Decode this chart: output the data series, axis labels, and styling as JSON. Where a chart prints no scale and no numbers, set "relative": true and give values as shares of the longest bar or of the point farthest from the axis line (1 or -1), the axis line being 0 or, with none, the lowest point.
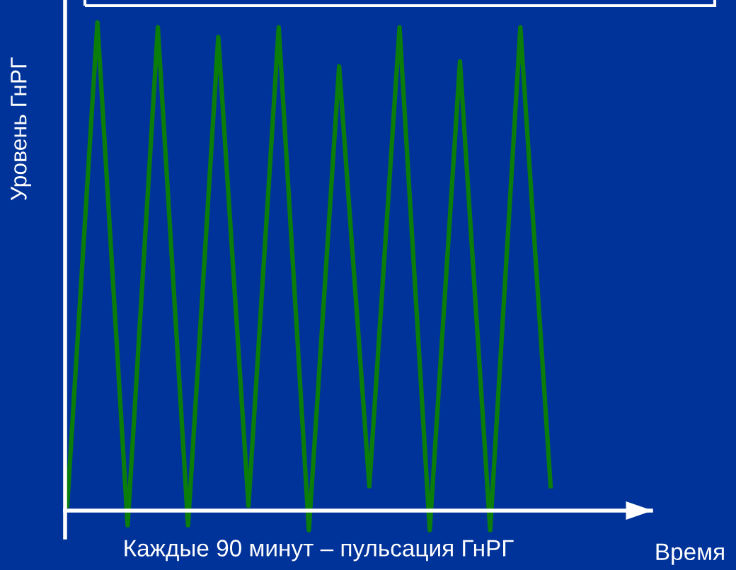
{
  "chart_data": {
    "type": "line",
    "relative": true,
    "xlabel": "Время",
    "ylabel": "Уровень ГнРГ",
    "annotations": [
      "Каждые 90 минут – пульсация ГнРГ"
    ],
    "categories": [
      null,
      null,
      null,
      null,
      null,
      null,
      null,
      null,
      null,
      null,
      null,
      null,
      null,
      null,
      null,
      null,
      null
    ],
    "series": [
      {
        "color": "#0a7d0a",
        "values": [
          0.01,
          1.0,
          -0.03,
          0.99,
          -0.03,
          0.97,
          0.01,
          0.99,
          -0.04,
          0.91,
          0.05,
          0.99,
          -0.04,
          0.92,
          -0.04,
          0.99,
          0.05
        ]
      }
    ],
    "marker": "none",
    "line_style": "solid"
  }
}
